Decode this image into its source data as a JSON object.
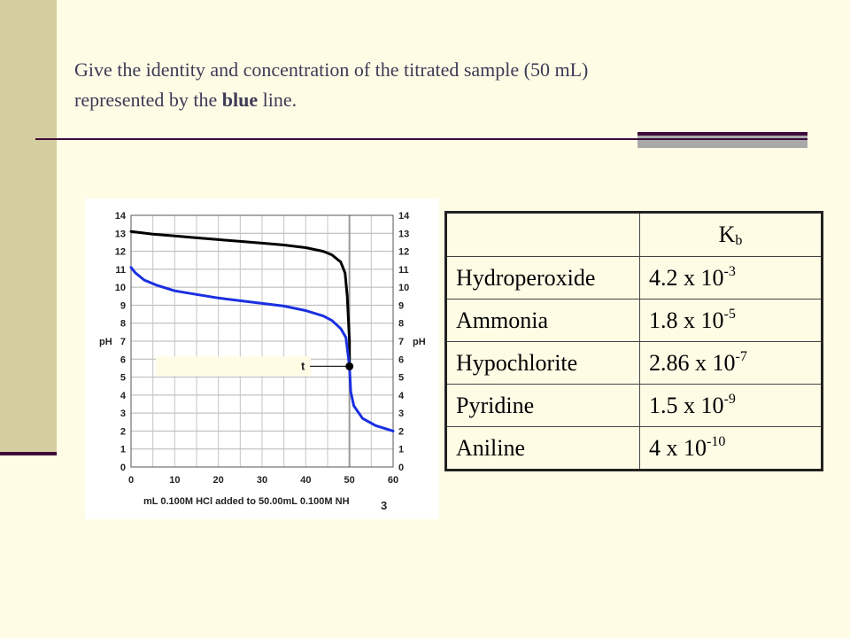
{
  "question": {
    "part1": "Give the identity and concentration of the titrated sample (50 mL)",
    "part2": "represented by the ",
    "emphasis": "blue",
    "part3": " line."
  },
  "table": {
    "header": {
      "symbol": "K",
      "subscript": "b"
    },
    "rows": [
      {
        "name": "Hydroperoxide",
        "mantissa": "4.2 x 10",
        "exponent": "-3"
      },
      {
        "name": "Ammonia",
        "mantissa": "1.8 x 10",
        "exponent": "-5"
      },
      {
        "name": "Hypochlorite",
        "mantissa": "2.86 x 10",
        "exponent": "-7"
      },
      {
        "name": "Pyridine",
        "mantissa": "1.5 x 10",
        "exponent": "-9"
      },
      {
        "name": "Aniline",
        "mantissa": "4 x 10",
        "exponent": "-10"
      }
    ]
  },
  "chart_data": {
    "type": "line",
    "title": "",
    "xlabel_main": "mL 0.100M HCl added to 50.00mL 0.100M NH",
    "xlabel_sub": "3",
    "ylabel_left": "pH",
    "ylabel_right": "pH",
    "xlim": [
      0,
      60
    ],
    "ylim": [
      0,
      14
    ],
    "x_ticks": [
      "0",
      "10",
      "20",
      "30",
      "40",
      "50",
      "60"
    ],
    "y_ticks": [
      "0",
      "1",
      "2",
      "3",
      "4",
      "5",
      "6",
      "7",
      "8",
      "9",
      "10",
      "11",
      "12",
      "13",
      "14"
    ],
    "grid": true,
    "annotation": {
      "text": "t",
      "x": 50,
      "y": 5.6
    },
    "series": [
      {
        "color": "#000000",
        "points": [
          [
            0,
            13.1
          ],
          [
            5,
            12.95
          ],
          [
            10,
            12.85
          ],
          [
            15,
            12.75
          ],
          [
            20,
            12.65
          ],
          [
            25,
            12.55
          ],
          [
            30,
            12.45
          ],
          [
            35,
            12.35
          ],
          [
            40,
            12.2
          ],
          [
            44,
            12.0
          ],
          [
            46,
            11.8
          ],
          [
            48,
            11.4
          ],
          [
            49,
            10.8
          ],
          [
            49.5,
            9.5
          ],
          [
            49.8,
            8.0
          ],
          [
            50,
            7.0
          ],
          [
            50,
            5.6
          ]
        ]
      },
      {
        "color": "#1a2fe0",
        "points": [
          [
            0,
            11.1
          ],
          [
            1,
            10.8
          ],
          [
            3,
            10.4
          ],
          [
            6,
            10.1
          ],
          [
            10,
            9.8
          ],
          [
            15,
            9.6
          ],
          [
            20,
            9.4
          ],
          [
            25,
            9.25
          ],
          [
            30,
            9.1
          ],
          [
            35,
            8.95
          ],
          [
            40,
            8.7
          ],
          [
            44,
            8.4
          ],
          [
            46,
            8.15
          ],
          [
            48,
            7.7
          ],
          [
            49.2,
            7.2
          ],
          [
            50,
            5.6
          ],
          [
            50.3,
            4.2
          ],
          [
            51,
            3.4
          ],
          [
            53,
            2.7
          ],
          [
            56,
            2.3
          ],
          [
            60,
            2.0
          ]
        ]
      }
    ]
  },
  "colors": {
    "background": "#fffce6",
    "sidebar": "#d3cda0",
    "rule": "#3e0a3a",
    "accent_gray": "#a9a9aa",
    "black_curve": "#000000",
    "blue_curve": "#1a2fe0"
  }
}
